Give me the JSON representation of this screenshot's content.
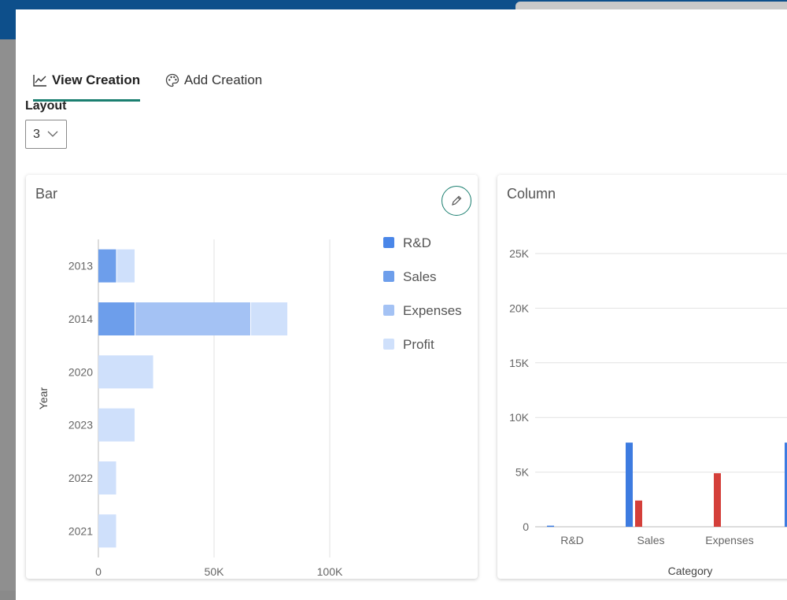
{
  "tabs": [
    {
      "label": "View Creation",
      "icon": "line-chart-icon",
      "active": true
    },
    {
      "label": "Add Creation",
      "icon": "palette-icon",
      "active": false
    }
  ],
  "layout": {
    "label": "Layout",
    "value": "3"
  },
  "colors": {
    "rd": "#4a86e8",
    "sales": "#6d9eeb",
    "expenses": "#a4c2f4",
    "profit": "#cfe0fb",
    "blue_col": "#3d7be0",
    "red_col": "#d43f3a",
    "accent": "#1b7f70"
  },
  "bar_card": {
    "title": "Bar"
  },
  "column_card": {
    "title": "Column"
  },
  "chart_data": [
    {
      "type": "bar",
      "title": "Bar",
      "orientation": "horizontal",
      "stacked": true,
      "ylabel": "Year",
      "categories": [
        "2013",
        "2014",
        "2020",
        "2023",
        "2022",
        "2021"
      ],
      "series": [
        {
          "name": "R&D",
          "values": [
            0,
            0,
            0,
            0,
            0,
            0
          ]
        },
        {
          "name": "Sales",
          "values": [
            8000,
            16000,
            0,
            0,
            0,
            0
          ]
        },
        {
          "name": "Expenses",
          "values": [
            0,
            50000,
            0,
            0,
            0,
            0
          ]
        },
        {
          "name": "Profit",
          "values": [
            8000,
            16000,
            24000,
            16000,
            8000,
            8000
          ]
        }
      ],
      "xlim": [
        0,
        100000
      ],
      "xticks": [
        "0",
        "50K",
        "100K"
      ],
      "legend": "right",
      "grid": true
    },
    {
      "type": "bar",
      "title": "Column",
      "xlabel": "Category",
      "categories": [
        "R&D",
        "Sales",
        "Expenses"
      ],
      "series": [
        {
          "values": [
            100,
            7700,
            0
          ]
        },
        {
          "values": [
            0,
            2400,
            4900
          ]
        }
      ],
      "ylim": [
        0,
        25000
      ],
      "yticks": [
        "0",
        "5K",
        "10K",
        "15K",
        "20K",
        "25K"
      ],
      "grid": true
    }
  ]
}
